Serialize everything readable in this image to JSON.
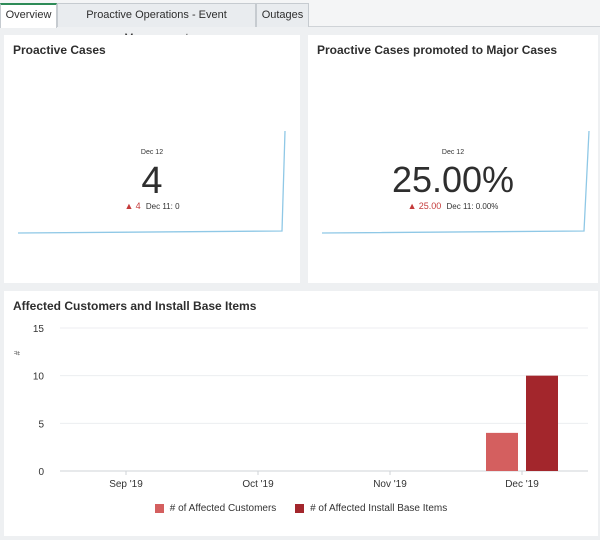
{
  "tabs": [
    {
      "label": "Overview",
      "active": true
    },
    {
      "label": "Proactive Operations - Event Management",
      "active": false
    },
    {
      "label": "Outages",
      "active": false
    }
  ],
  "cards": {
    "proactive_cases": {
      "title": "Proactive Cases",
      "date": "Dec 12",
      "value": "4",
      "delta_arrow": "▲",
      "delta": "4",
      "previous": "Dec 11: 0"
    },
    "promoted_cases": {
      "title": "Proactive Cases promoted to Major Cases",
      "date": "Dec 12",
      "value": "25.00%",
      "delta_arrow": "▲",
      "delta": "25.00",
      "previous": "Dec 11: 0.00%"
    }
  },
  "bar_chart_title": "Affected Customers and Install Base Items",
  "chart_data": {
    "type": "bar",
    "title": "Affected Customers and Install Base Items",
    "ylabel": "#",
    "ylim": [
      0,
      15
    ],
    "yticks": [
      0,
      5,
      10,
      15
    ],
    "categories": [
      "Sep '19",
      "Oct '19",
      "Nov '19",
      "Dec '19"
    ],
    "series": [
      {
        "name": "# of Affected Customers",
        "color": "#d45f5f",
        "values": [
          0,
          0,
          0,
          4
        ]
      },
      {
        "name": "# of Affected Install Base Items",
        "color": "#a3262c",
        "values": [
          0,
          0,
          0,
          10
        ]
      }
    ],
    "grid": true,
    "legend": "bottom"
  },
  "colors": {
    "accent_tab": "#2e8b57",
    "sparkline": "#8fc8e6",
    "delta_up": "#c43a3a"
  }
}
